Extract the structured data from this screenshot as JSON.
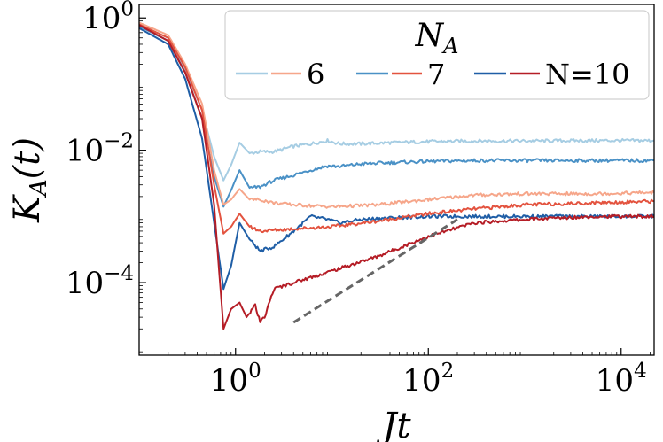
{
  "chart_data": {
    "type": "line",
    "title": "",
    "xlabel": "Jt",
    "ylabel": "K_A(t)",
    "xscale": "log",
    "yscale": "log",
    "xlim": [
      0.1,
      22000
    ],
    "ylim": [
      8e-06,
      1.6
    ],
    "x_ticks": [
      {
        "value": 1,
        "base": "10",
        "exp": "0"
      },
      {
        "value": 100,
        "base": "10",
        "exp": "2"
      },
      {
        "value": 10000,
        "base": "10",
        "exp": "4"
      }
    ],
    "y_ticks": [
      {
        "value": 1,
        "base": "10",
        "exp": "0"
      },
      {
        "value": 0.01,
        "base": "10",
        "exp": "−2"
      },
      {
        "value": 0.0001,
        "base": "10",
        "exp": "−4"
      }
    ],
    "legend": {
      "title": "N_A",
      "position": "top-right",
      "groups": [
        {
          "label": "6",
          "colors": [
            "#a6cde3",
            "#f6a68a"
          ]
        },
        {
          "label": "7",
          "colors": [
            "#4a91c6",
            "#e3533f"
          ]
        },
        {
          "label": "N=10",
          "colors": [
            "#1f5ea6",
            "#b51d26"
          ]
        }
      ]
    },
    "series": [
      {
        "group": "6",
        "color": "#a6cde3",
        "style": "solid",
        "points": [
          [
            0.1,
            0.8
          ],
          [
            0.2,
            0.5
          ],
          [
            0.3,
            0.17
          ],
          [
            0.45,
            0.04
          ],
          [
            0.6,
            0.008
          ],
          [
            0.75,
            0.0035
          ],
          [
            0.9,
            0.006
          ],
          [
            1.1,
            0.013
          ],
          [
            1.4,
            0.009
          ],
          [
            1.8,
            0.0095
          ],
          [
            2.5,
            0.0095
          ],
          [
            4,
            0.0115
          ],
          [
            6,
            0.0125
          ],
          [
            9,
            0.014
          ],
          [
            12,
            0.0125
          ],
          [
            20,
            0.0125
          ],
          [
            40,
            0.013
          ],
          [
            100,
            0.0135
          ],
          [
            300,
            0.0138
          ],
          [
            1000,
            0.0138
          ],
          [
            5000,
            0.014
          ],
          [
            22000,
            0.014
          ]
        ]
      },
      {
        "group": "7",
        "color": "#4a91c6",
        "style": "solid",
        "points": [
          [
            0.1,
            0.75
          ],
          [
            0.2,
            0.45
          ],
          [
            0.3,
            0.15
          ],
          [
            0.45,
            0.03
          ],
          [
            0.6,
            0.004
          ],
          [
            0.75,
            0.0014
          ],
          [
            0.9,
            0.0025
          ],
          [
            1.1,
            0.005
          ],
          [
            1.4,
            0.0027
          ],
          [
            1.8,
            0.0028
          ],
          [
            2.5,
            0.0035
          ],
          [
            4,
            0.0042
          ],
          [
            6,
            0.005
          ],
          [
            9,
            0.0058
          ],
          [
            12,
            0.0057
          ],
          [
            20,
            0.0062
          ],
          [
            40,
            0.0065
          ],
          [
            100,
            0.0068
          ],
          [
            300,
            0.007
          ],
          [
            1000,
            0.007
          ],
          [
            5000,
            0.007
          ],
          [
            22000,
            0.007
          ]
        ]
      },
      {
        "group": "N=10",
        "color": "#1f5ea6",
        "style": "solid",
        "points": [
          [
            0.1,
            0.7
          ],
          [
            0.2,
            0.4
          ],
          [
            0.3,
            0.12
          ],
          [
            0.45,
            0.015
          ],
          [
            0.6,
            0.0008
          ],
          [
            0.75,
            8e-05
          ],
          [
            0.9,
            0.00018
          ],
          [
            1.1,
            0.0008
          ],
          [
            1.4,
            0.00045
          ],
          [
            1.8,
            0.0003
          ],
          [
            2.5,
            0.00035
          ],
          [
            4,
            0.0006
          ],
          [
            6,
            0.001
          ],
          [
            9,
            0.0009
          ],
          [
            12,
            0.0008
          ],
          [
            20,
            0.0009
          ],
          [
            40,
            0.00095
          ],
          [
            100,
            0.001
          ],
          [
            300,
            0.001
          ],
          [
            1000,
            0.001
          ],
          [
            5000,
            0.001
          ],
          [
            22000,
            0.001
          ]
        ]
      },
      {
        "group": "6",
        "color": "#f6a68a",
        "style": "solid",
        "points": [
          [
            0.1,
            0.85
          ],
          [
            0.2,
            0.55
          ],
          [
            0.3,
            0.2
          ],
          [
            0.45,
            0.05
          ],
          [
            0.6,
            0.005
          ],
          [
            0.75,
            0.0015
          ],
          [
            0.9,
            0.0018
          ],
          [
            1.1,
            0.0026
          ],
          [
            1.4,
            0.0018
          ],
          [
            1.8,
            0.0018
          ],
          [
            2.5,
            0.0016
          ],
          [
            4,
            0.0015
          ],
          [
            10,
            0.0014
          ],
          [
            30,
            0.0015
          ],
          [
            100,
            0.0018
          ],
          [
            300,
            0.0021
          ],
          [
            1000,
            0.0022
          ],
          [
            5000,
            0.0022
          ],
          [
            22000,
            0.0023
          ]
        ]
      },
      {
        "group": "7",
        "color": "#e3533f",
        "style": "solid",
        "points": [
          [
            0.1,
            0.8
          ],
          [
            0.2,
            0.5
          ],
          [
            0.3,
            0.18
          ],
          [
            0.45,
            0.04
          ],
          [
            0.6,
            0.003
          ],
          [
            0.75,
            0.00055
          ],
          [
            0.9,
            0.0007
          ],
          [
            1.1,
            0.0011
          ],
          [
            1.4,
            0.0007
          ],
          [
            1.8,
            0.0006
          ],
          [
            2.5,
            0.00062
          ],
          [
            4,
            0.00065
          ],
          [
            10,
            0.0007
          ],
          [
            30,
            0.00085
          ],
          [
            100,
            0.0011
          ],
          [
            300,
            0.0013
          ],
          [
            1000,
            0.0015
          ],
          [
            5000,
            0.0016
          ],
          [
            22000,
            0.0017
          ]
        ]
      },
      {
        "group": "N=10",
        "color": "#b51d26",
        "style": "solid",
        "points": [
          [
            0.1,
            0.78
          ],
          [
            0.2,
            0.45
          ],
          [
            0.3,
            0.15
          ],
          [
            0.45,
            0.03
          ],
          [
            0.6,
            0.0015
          ],
          [
            0.75,
            2e-05
          ],
          [
            0.9,
            4e-05
          ],
          [
            1.1,
            5e-05
          ],
          [
            1.3,
            3e-05
          ],
          [
            1.6,
            4.5e-05
          ],
          [
            1.8,
            2.5e-05
          ],
          [
            2,
            3e-05
          ],
          [
            2.5,
            8e-05
          ],
          [
            4,
            0.0001
          ],
          [
            10,
            0.00015
          ],
          [
            30,
            0.00025
          ],
          [
            100,
            0.0005
          ],
          [
            300,
            0.0008
          ],
          [
            1000,
            0.0009
          ],
          [
            5000,
            0.001
          ],
          [
            22000,
            0.001
          ]
        ]
      },
      {
        "group": "",
        "color": "#666666",
        "style": "dashed",
        "points": [
          [
            4,
            2.5e-05
          ],
          [
            200,
            0.0009
          ]
        ]
      }
    ]
  }
}
